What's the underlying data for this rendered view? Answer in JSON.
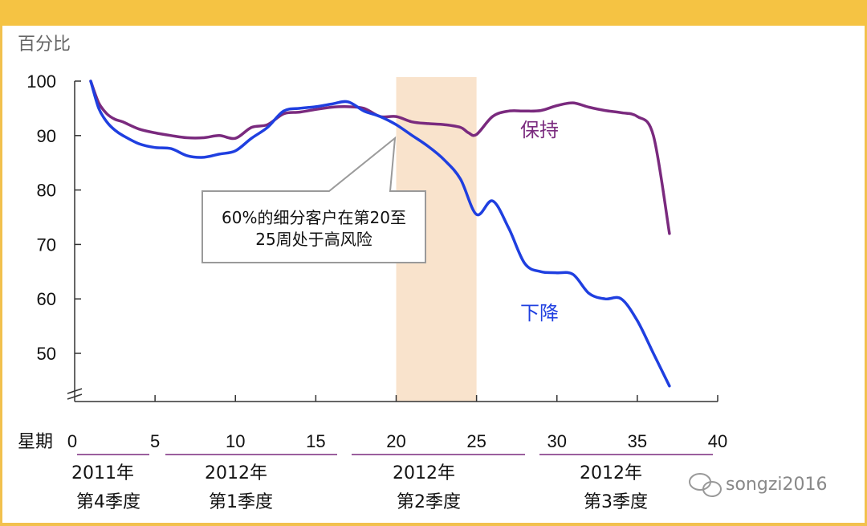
{
  "chart_data": {
    "type": "line",
    "ylabel": "百分比",
    "xlabel": "星期",
    "xlim": [
      0,
      40
    ],
    "ylim": [
      45,
      100
    ],
    "x_ticks": [
      0,
      5,
      10,
      15,
      20,
      25,
      30,
      35,
      40
    ],
    "y_ticks": [
      50,
      60,
      70,
      80,
      90,
      100
    ],
    "y_tick_labels": [
      "50",
      "60",
      "70",
      "80",
      "90",
      "100"
    ],
    "grid": false,
    "highlight_region": {
      "x_start": 20,
      "x_end": 25,
      "color": "#f9e3cc"
    },
    "series": [
      {
        "name": "保持",
        "color": "#7a2a7e",
        "x": [
          1,
          1.5,
          2,
          2.5,
          3,
          4,
          5,
          6,
          7,
          8,
          9,
          10,
          11,
          12,
          13,
          14,
          15,
          16,
          17,
          18,
          19,
          20,
          21,
          22,
          23,
          24,
          24.5,
          25,
          26,
          27,
          28,
          29,
          30,
          31,
          32,
          33,
          34,
          35,
          36,
          37
        ],
        "values": [
          100,
          96,
          94,
          93,
          92.5,
          91.2,
          90.5,
          90,
          89.6,
          89.6,
          90,
          89.5,
          91.5,
          92,
          94,
          94.3,
          94.8,
          95.2,
          95.3,
          95,
          93.5,
          93.5,
          92.5,
          92.2,
          92,
          91.5,
          90.5,
          90.2,
          93.5,
          94.5,
          94.5,
          94.6,
          95.5,
          96,
          95.2,
          94.6,
          94.2,
          93.5,
          90,
          72
        ]
      },
      {
        "name": "下降",
        "color": "#1f3fe0",
        "x": [
          1,
          1.5,
          2,
          2.5,
          3,
          4,
          5,
          6,
          7,
          8,
          9,
          10,
          11,
          12,
          13,
          14,
          15,
          16,
          17,
          18,
          19,
          20,
          21,
          22,
          23,
          24,
          25,
          26,
          27,
          28,
          29,
          30,
          31,
          32,
          33,
          34,
          35,
          36,
          37
        ],
        "values": [
          100,
          95,
          92.5,
          91,
          90,
          88.5,
          87.8,
          87.6,
          86.3,
          86,
          86.6,
          87.2,
          89.5,
          91.5,
          94.5,
          95,
          95.3,
          95.8,
          96.2,
          94.5,
          93.5,
          92,
          90,
          88,
          85.5,
          82,
          75.5,
          78,
          73,
          66.5,
          65,
          64.8,
          64.5,
          61,
          60,
          60,
          56,
          50,
          44
        ]
      }
    ],
    "annotations": [
      {
        "text_line1": "60%的细分客户在第20至",
        "text_line2": "25周处于高风险",
        "points_to_x": 20
      }
    ],
    "quarter_labels": [
      {
        "year": "2011年",
        "quarter": "第4季度"
      },
      {
        "year": "2012年",
        "quarter": "第1季度"
      },
      {
        "year": "2012年",
        "quarter": "第2季度"
      },
      {
        "year": "2012年",
        "quarter": "第3季度"
      }
    ]
  },
  "watermark": "songzi2016",
  "colors": {
    "band": "#f5c343",
    "frame": "#f2c14e",
    "highlight": "#f9e3cc",
    "quarter_line": "#7a2a7e"
  }
}
